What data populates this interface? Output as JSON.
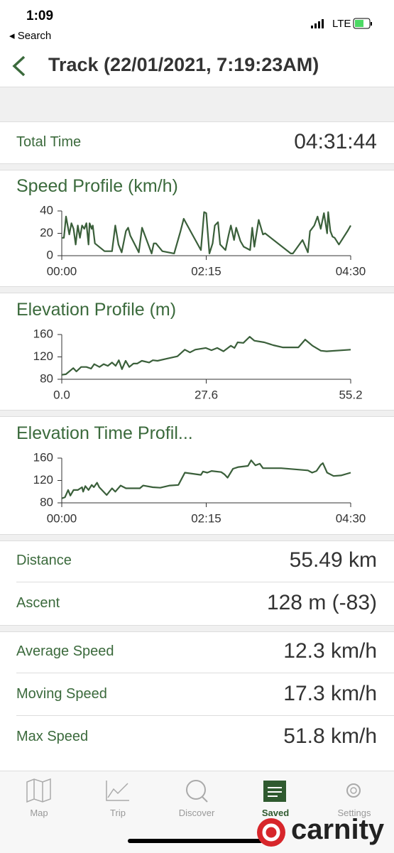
{
  "status": {
    "time": "1:09",
    "back": "◂ Search",
    "network": "LTE"
  },
  "header": {
    "title": "Track (22/01/2021, 7:19:23AM)"
  },
  "total_time": {
    "label": "Total Time",
    "value": "04:31:44"
  },
  "chart_data": [
    {
      "type": "line",
      "title": "Speed Profile (km/h)",
      "color": "#3a5f3a",
      "x": [
        0,
        2,
        4,
        7,
        9,
        11,
        13,
        15,
        17,
        19,
        21,
        23,
        25,
        26,
        28,
        29,
        31,
        40,
        47,
        50,
        53,
        56,
        60,
        62,
        64,
        72,
        75,
        84,
        86,
        88,
        94,
        105,
        111,
        114,
        122,
        130,
        133,
        135,
        138,
        141,
        143,
        146,
        148,
        153,
        156,
        158,
        161,
        163,
        167,
        170,
        176,
        178,
        180,
        184,
        188,
        190,
        214,
        216,
        225,
        230,
        232,
        236,
        239,
        242,
        245,
        248,
        249,
        251,
        253,
        255,
        259,
        267,
        270
      ],
      "values": [
        16,
        16,
        35,
        19,
        29,
        24,
        10,
        27,
        16,
        27,
        24,
        29,
        10,
        29,
        24,
        27,
        11,
        4,
        4,
        27,
        10,
        3,
        22,
        25,
        18,
        3,
        25,
        2,
        11,
        11,
        4,
        2,
        22,
        33,
        19,
        5,
        39,
        38,
        2,
        11,
        27,
        30,
        10,
        5,
        19,
        27,
        14,
        25,
        13,
        8,
        5,
        25,
        8,
        32,
        19,
        20,
        2,
        2,
        14,
        3,
        22,
        27,
        35,
        24,
        38,
        20,
        39,
        22,
        17,
        16,
        10,
        22,
        27
      ],
      "xlim": [
        0,
        270
      ],
      "xticks": [
        {
          "value": 0,
          "label": "00:00"
        },
        {
          "value": 135,
          "label": "02:15"
        },
        {
          "value": 270,
          "label": "04:30"
        }
      ],
      "ylim": [
        0,
        40
      ],
      "yticks": [
        0,
        20,
        40
      ]
    },
    {
      "type": "line",
      "title": "Elevation Profile (m)",
      "color": "#3a5f3a",
      "x": [
        0.0,
        0.8,
        2.2,
        2.8,
        3.7,
        4.7,
        5.6,
        6.2,
        7.2,
        8.0,
        8.8,
        9.6,
        10.3,
        10.9,
        11.5,
        12.2,
        12.9,
        13.7,
        14.4,
        15.3,
        16.7,
        17.4,
        18.3,
        20.1,
        22.1,
        23.5,
        24.5,
        25.5,
        27.5,
        28.6,
        29.7,
        30.9,
        32.3,
        33.0,
        33.6,
        34.7,
        35.9,
        36.8,
        38.7,
        40.4,
        42.2,
        43.8,
        45.2,
        46.5,
        47.9,
        49.5,
        50.6,
        55.2
      ],
      "values": [
        88,
        89,
        100,
        94,
        102,
        102,
        99,
        107,
        102,
        107,
        104,
        110,
        104,
        114,
        98,
        113,
        102,
        108,
        108,
        113,
        110,
        114,
        113,
        117,
        121,
        133,
        128,
        133,
        136,
        132,
        136,
        130,
        140,
        136,
        146,
        145,
        156,
        149,
        146,
        141,
        137,
        137,
        137,
        151,
        140,
        131,
        130,
        133
      ],
      "xlim": [
        0,
        55.2
      ],
      "xticks": [
        {
          "value": 0,
          "label": "0.0"
        },
        27.6,
        55.2
      ],
      "ylim": [
        80,
        160
      ],
      "yticks": [
        80,
        120,
        160
      ]
    },
    {
      "type": "line",
      "title": "Elevation Time Profil...",
      "color": "#3a5f3a",
      "x": [
        0,
        3,
        6,
        8,
        11,
        15,
        19,
        20,
        22,
        25,
        28,
        30,
        33,
        35,
        42,
        47,
        50,
        55,
        60,
        63,
        73,
        76,
        85,
        92,
        101,
        109,
        115,
        130,
        132,
        136,
        140,
        149,
        152,
        155,
        160,
        165,
        174,
        177,
        181,
        185,
        188,
        205,
        230,
        234,
        238,
        242,
        244,
        248,
        254,
        261,
        270
      ],
      "values": [
        88,
        90,
        103,
        93,
        103,
        103,
        108,
        100,
        110,
        103,
        112,
        108,
        116,
        108,
        94,
        106,
        100,
        111,
        106,
        106,
        106,
        111,
        108,
        107,
        111,
        112,
        134,
        130,
        136,
        134,
        137,
        135,
        131,
        125,
        141,
        144,
        146,
        156,
        147,
        150,
        142,
        142,
        138,
        134,
        137,
        148,
        151,
        134,
        128,
        129,
        134
      ],
      "xlim": [
        0,
        270
      ],
      "xticks": [
        {
          "value": 0,
          "label": "00:00"
        },
        {
          "value": 135,
          "label": "02:15"
        },
        {
          "value": 270,
          "label": "04:30"
        }
      ],
      "ylim": [
        80,
        160
      ],
      "yticks": [
        80,
        120,
        160
      ]
    }
  ],
  "stats": [
    [
      {
        "label": "Distance",
        "value": "55.49 km"
      },
      {
        "label": "Ascent",
        "value": "128 m (-83)"
      }
    ],
    [
      {
        "label": "Average Speed",
        "value": "12.3 km/h"
      },
      {
        "label": "Moving Speed",
        "value": "17.3 km/h"
      },
      {
        "label": "Max Speed",
        "value": "51.8 km/h"
      }
    ]
  ],
  "tabs": [
    "Map",
    "Trip",
    "Discover",
    "Saved",
    "Settings"
  ],
  "watermark": "carnity"
}
